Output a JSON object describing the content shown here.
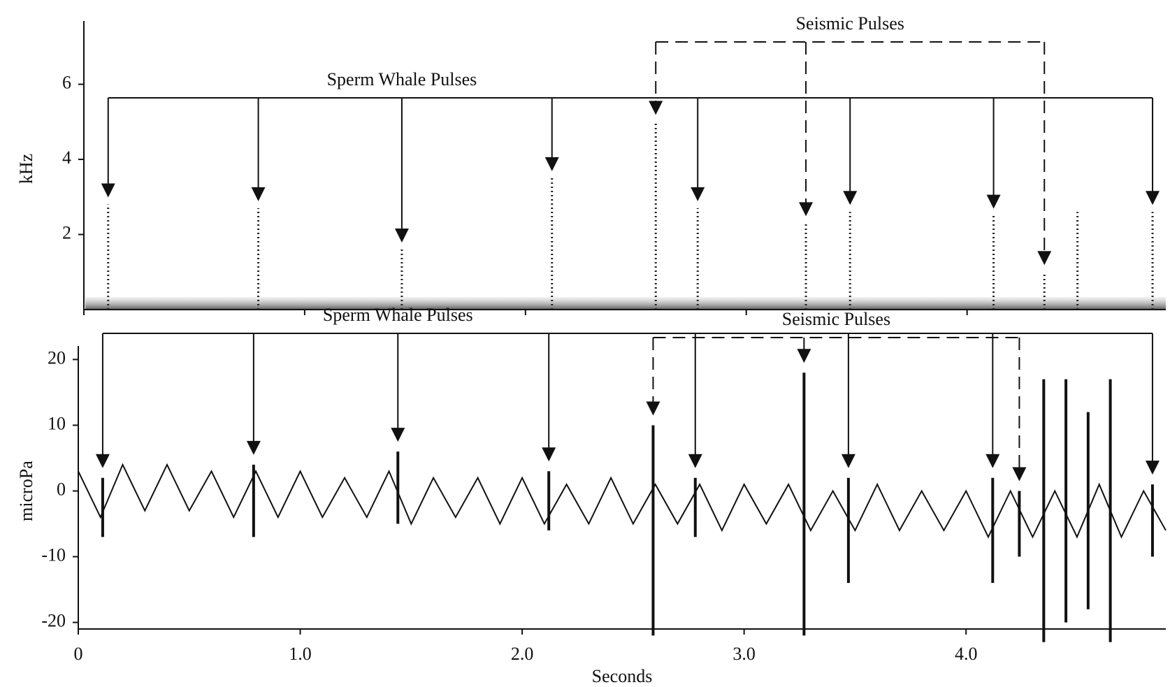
{
  "chart_data": [
    {
      "type": "spectrogram",
      "y_label": "kHz",
      "xlim": [
        0,
        4.9
      ],
      "xticks": [
        0,
        1,
        2,
        3,
        4
      ],
      "ylim": [
        0,
        7.5
      ],
      "yticks": [
        2,
        4,
        6
      ],
      "color": "#222222",
      "x": [
        0.11,
        0.79,
        1.44,
        2.12,
        2.59,
        2.78,
        3.27,
        3.47,
        4.12,
        4.35,
        4.5,
        4.84
      ],
      "values": [
        2.8,
        2.7,
        1.6,
        3.5,
        5.0,
        2.7,
        2.3,
        2.6,
        2.5,
        1.0,
        2.6,
        2.6
      ],
      "annotations": [
        {
          "text": "Sperm Whale Pulses",
          "line_style": "solid",
          "x": [
            0.11,
            0.79,
            1.44,
            2.12,
            2.78,
            3.47,
            4.12,
            4.84
          ]
        },
        {
          "text": "Seismic Pulses",
          "line_style": "dashed",
          "x": [
            2.59,
            3.27,
            4.35
          ]
        }
      ]
    },
    {
      "type": "line",
      "x_label": "Seconds",
      "y_label": "microPa",
      "xlim": [
        0,
        4.9
      ],
      "xticks": [
        0,
        {
          "value": 1,
          "label": "1.0"
        },
        {
          "value": 2,
          "label": "2.0"
        },
        {
          "value": 3,
          "label": "3.0"
        },
        {
          "value": 4,
          "label": "4.0"
        }
      ],
      "ylim": [
        -21,
        21
      ],
      "yticks": [
        -20,
        -10,
        0,
        10,
        20
      ],
      "series": [
        {
          "color": "#111111",
          "x": [
            0.0,
            0.1,
            0.2,
            0.3,
            0.4,
            0.5,
            0.6,
            0.7,
            0.8,
            0.9,
            1.0,
            1.1,
            1.2,
            1.3,
            1.4,
            1.5,
            1.6,
            1.7,
            1.8,
            1.9,
            2.0,
            2.1,
            2.2,
            2.3,
            2.4,
            2.5,
            2.6,
            2.7,
            2.8,
            2.9,
            3.0,
            3.1,
            3.2,
            3.3,
            3.4,
            3.5,
            3.6,
            3.7,
            3.8,
            3.9,
            4.0,
            4.1,
            4.2,
            4.3,
            4.4,
            4.5,
            4.6,
            4.7,
            4.8,
            4.9
          ],
          "values": [
            3,
            -4,
            4,
            -3,
            4,
            -3,
            3,
            -4,
            3,
            -4,
            3,
            -4,
            2,
            -4,
            3,
            -5,
            2,
            -4,
            2,
            -5,
            2,
            -5,
            1,
            -5,
            2,
            -5,
            1,
            -5,
            1,
            -6,
            1,
            -5,
            1,
            -6,
            0,
            -6,
            1,
            -6,
            0,
            -6,
            0,
            -7,
            0,
            -7,
            0,
            -7,
            1,
            -7,
            0,
            -6
          ]
        }
      ],
      "spikes": {
        "x": [
          0.11,
          0.79,
          1.44,
          2.12,
          2.59,
          2.78,
          3.27,
          3.47,
          4.12,
          4.24,
          4.35,
          4.45,
          4.55,
          4.65,
          4.84
        ],
        "high": [
          2,
          4,
          6,
          3,
          10,
          2,
          18,
          2,
          2,
          0,
          17,
          17,
          12,
          17,
          1
        ],
        "low": [
          -7,
          -7,
          -5,
          -6,
          -22,
          -7,
          -22,
          -14,
          -14,
          -10,
          -23,
          -20,
          -18,
          -23,
          -10
        ]
      },
      "annotations": [
        {
          "text": "Sperm Whale Pulses",
          "line_style": "solid",
          "x": [
            0.11,
            0.79,
            1.44,
            2.12,
            2.78,
            3.47,
            4.12,
            4.84
          ]
        },
        {
          "text": "Seismic Pulses",
          "line_style": "dashed",
          "x": [
            2.59,
            3.27,
            4.24
          ]
        }
      ]
    }
  ]
}
